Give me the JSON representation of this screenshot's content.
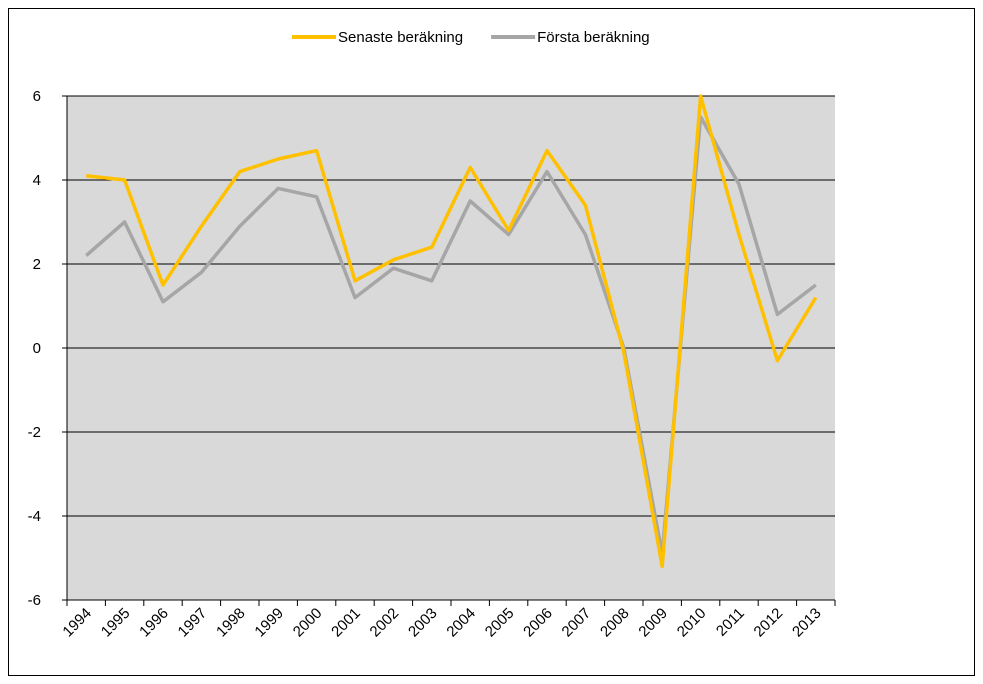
{
  "chart_data": {
    "type": "line",
    "categories": [
      "1994",
      "1995",
      "1996",
      "1997",
      "1998",
      "1999",
      "2000",
      "2001",
      "2002",
      "2003",
      "2004",
      "2005",
      "2006",
      "2007",
      "2008",
      "2009",
      "2010",
      "2011",
      "2012",
      "2013"
    ],
    "series": [
      {
        "name": "Senaste beräkning",
        "color": "#ffc000",
        "values": [
          4.1,
          4.0,
          1.5,
          2.9,
          4.2,
          4.5,
          4.7,
          1.6,
          2.1,
          2.4,
          4.3,
          2.8,
          4.7,
          3.4,
          -0.1,
          -5.2,
          6.0,
          2.7,
          -0.3,
          1.2
        ]
      },
      {
        "name": "Första beräkning",
        "color": "#a6a6a6",
        "values": [
          2.2,
          3.0,
          1.1,
          1.8,
          2.9,
          3.8,
          3.6,
          1.2,
          1.9,
          1.6,
          3.5,
          2.7,
          4.2,
          2.7,
          0.0,
          -4.9,
          5.5,
          3.9,
          0.8,
          1.5
        ]
      }
    ],
    "ylim": [
      -6,
      6
    ],
    "yticks": [
      -6,
      -4,
      -2,
      0,
      2,
      4,
      6
    ],
    "grid": true,
    "legend": "top",
    "background": "#d9d9d9"
  }
}
